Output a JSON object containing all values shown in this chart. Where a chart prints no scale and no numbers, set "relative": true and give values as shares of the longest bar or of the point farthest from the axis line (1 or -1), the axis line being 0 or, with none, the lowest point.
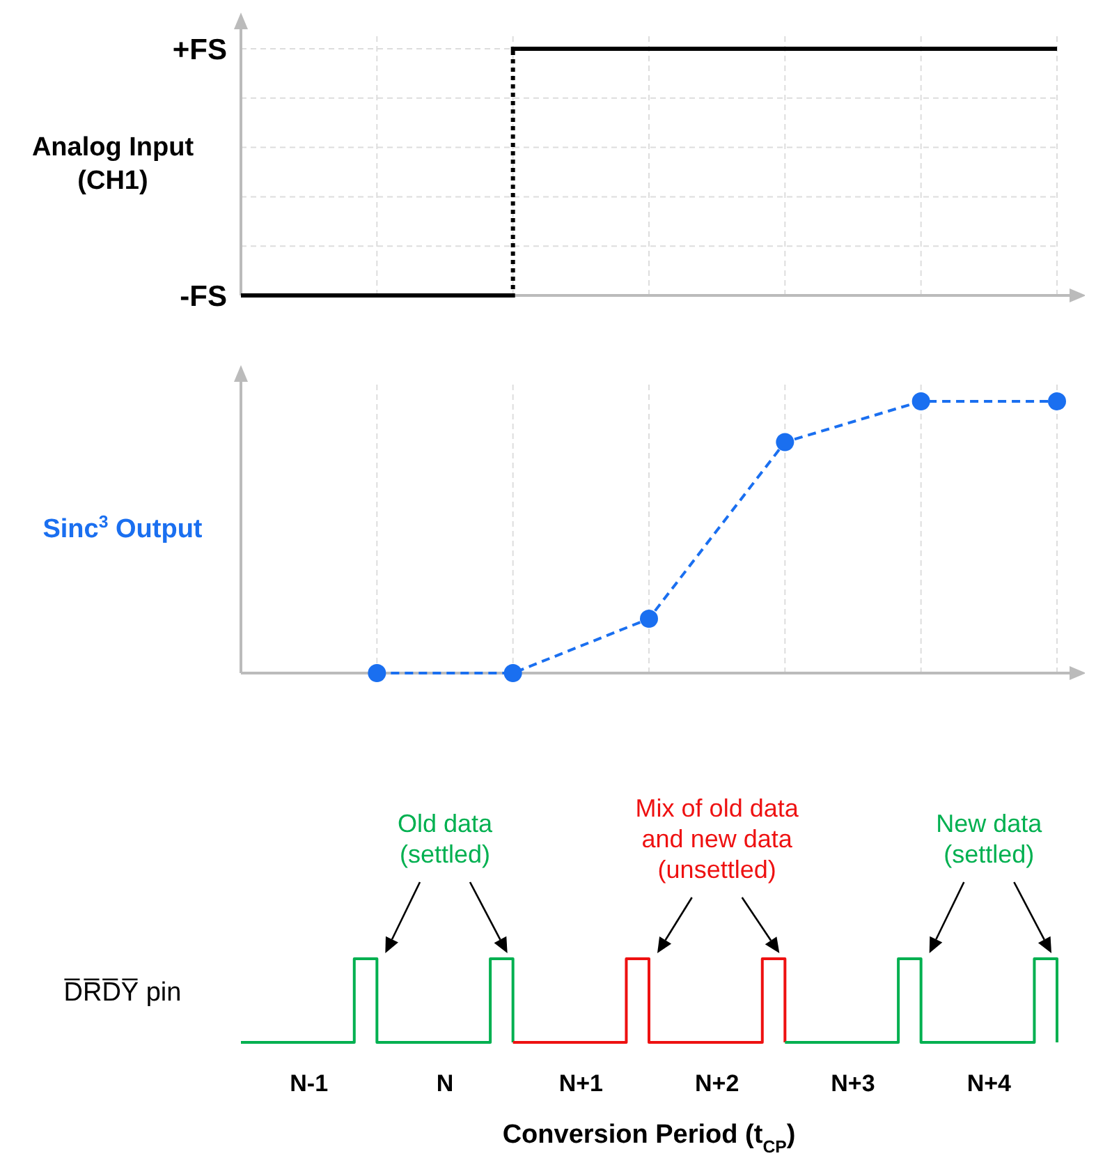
{
  "chart_data": [
    {
      "type": "step",
      "ylabel": "Analog Input\n(CH1)",
      "relative": true,
      "categories": [
        null,
        null,
        null,
        null,
        null,
        null,
        null
      ],
      "tick_labels": false,
      "grid": true,
      "annotations": [
        "+FS",
        "-FS"
      ],
      "series": [
        {
          "color": "#000000",
          "values": [
            0,
            0,
            1,
            1,
            1,
            1,
            1
          ]
        }
      ]
    },
    {
      "type": "line",
      "ylabel": "Sinc$^{3}$ Output",
      "relative": true,
      "categories": [
        null,
        null,
        null,
        null,
        null,
        null
      ],
      "tick_labels": false,
      "grid": "x",
      "series": [
        {
          "color": "#1a6ff0",
          "values": [
            0,
            0,
            0.2,
            0.85,
            1,
            1
          ],
          "line_style": "dashed",
          "marker": "circle"
        }
      ]
    },
    {
      "type": "step",
      "ylabel": "D̅R̅D̅Y̅ pin",
      "xlabel": "Conversion Period (t$_{CP}$)",
      "relative": true,
      "categories": [
        null,
        null,
        null,
        "N-1",
        null,
        null,
        null,
        null,
        null,
        "N",
        null,
        null,
        null,
        null,
        null,
        "N+1",
        null,
        null,
        null,
        null,
        null,
        "N+2",
        null,
        null,
        null,
        null,
        null,
        "N+3",
        null,
        null,
        null,
        null,
        null,
        "N+4",
        null,
        null,
        null
      ],
      "tick_labels": "x",
      "annotations": [
        "Old data\n(settled)",
        "Mix of old data\nand new data\n(unsettled)",
        "New data\n(settled)"
      ],
      "series": [
        {
          "color": "#00b050",
          "values": [
            0,
            0,
            0,
            0,
            0,
            1,
            0,
            0,
            0,
            0,
            0,
            1,
            0,
            null,
            null,
            null,
            null,
            null,
            null,
            null,
            null,
            null,
            null,
            null,
            null,
            null,
            null,
            null,
            null,
            null,
            null,
            null,
            null,
            null,
            null,
            null,
            null
          ]
        },
        {
          "color": "#ee1111",
          "values": [
            null,
            null,
            null,
            null,
            null,
            null,
            null,
            null,
            null,
            null,
            null,
            null,
            0,
            0,
            0,
            0,
            0,
            1,
            0,
            0,
            0,
            0,
            0,
            1,
            0,
            null,
            null,
            null,
            null,
            null,
            null,
            null,
            null,
            null,
            null,
            null,
            null
          ]
        },
        {
          "color": "#00b050",
          "values": [
            null,
            null,
            null,
            null,
            null,
            null,
            null,
            null,
            null,
            null,
            null,
            null,
            null,
            null,
            null,
            null,
            null,
            null,
            null,
            null,
            null,
            null,
            null,
            null,
            0,
            0,
            0,
            0,
            0,
            1,
            0,
            0,
            0,
            0,
            0,
            1,
            0
          ]
        }
      ]
    }
  ]
}
